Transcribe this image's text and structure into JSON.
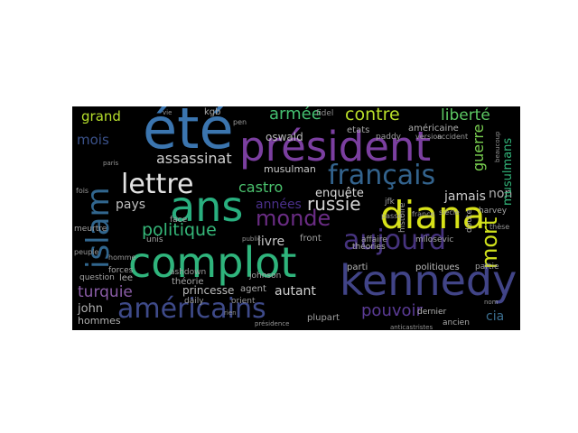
{
  "wordcloud": {
    "background": "#000000",
    "words": [
      {
        "text": "complot",
        "color": "#2fb47c"
      },
      {
        "text": "été",
        "color": "#3b75af"
      },
      {
        "text": "président",
        "color": "#7b3fa0"
      },
      {
        "text": "kennedy",
        "color": "#414487"
      },
      {
        "text": "diana",
        "color": "#d8e219"
      },
      {
        "text": "ans",
        "color": "#29af7f"
      },
      {
        "text": "américains",
        "color": "#3e4a89"
      },
      {
        "text": "islam",
        "color": "#31668e"
      },
      {
        "text": "aujourd",
        "color": "#46337e"
      },
      {
        "text": "français",
        "color": "#33638d"
      },
      {
        "text": "lettre",
        "color": "#e2e2e2"
      },
      {
        "text": "monde",
        "color": "#6a2c84"
      },
      {
        "text": "contre",
        "color": "#b8de29"
      },
      {
        "text": "liberté",
        "color": "#5cc863"
      },
      {
        "text": "armée",
        "color": "#44bf70"
      },
      {
        "text": "mort",
        "color": "#d0e11c"
      },
      {
        "text": "politique",
        "color": "#35b779"
      },
      {
        "text": "russie",
        "color": "#d5d5d5"
      },
      {
        "text": "turquie",
        "color": "#8a5ca6"
      },
      {
        "text": "pouvoir",
        "color": "#5b3b95"
      },
      {
        "text": "guerre",
        "color": "#7ad151"
      },
      {
        "text": "assassinat",
        "color": "#cfcfcf"
      },
      {
        "text": "grand",
        "color": "#b5de2b"
      },
      {
        "text": "mois",
        "color": "#3b528b"
      },
      {
        "text": "castro",
        "color": "#4ac16d"
      },
      {
        "text": "pays",
        "color": "#c0c0c0"
      },
      {
        "text": "enquête",
        "color": "#d9d9d9"
      },
      {
        "text": "autant",
        "color": "#d0d0d0"
      },
      {
        "text": "années",
        "color": "#4a2f8a"
      },
      {
        "text": "livre",
        "color": "#c8c8c8"
      },
      {
        "text": "jamais",
        "color": "#cccccc"
      },
      {
        "text": "non",
        "color": "#b0b0b0"
      },
      {
        "text": "musulmans",
        "color": "#32b67a"
      },
      {
        "text": "musulman",
        "color": "#c8c8c8"
      },
      {
        "text": "oswald",
        "color": "#b8b8b8"
      },
      {
        "text": "john",
        "color": "#b0b0b0"
      },
      {
        "text": "cia",
        "color": "#3b6e8f"
      },
      {
        "text": "kgb",
        "color": "#a9a9a9"
      },
      {
        "text": "fidel",
        "color": "#8f8f8f"
      },
      {
        "text": "etats",
        "color": "#a5a5a5"
      },
      {
        "text": "américaine",
        "color": "#b0b0b0"
      },
      {
        "text": "paddy",
        "color": "#9c9c9c"
      },
      {
        "text": "version",
        "color": "#9a9a9a"
      },
      {
        "text": "accident",
        "color": "#9a9a9a"
      },
      {
        "text": "théorie",
        "color": "#a6a6a6"
      },
      {
        "text": "princesse",
        "color": "#bdbdbd"
      },
      {
        "text": "agent",
        "color": "#adadad"
      },
      {
        "text": "daily",
        "color": "#9a9a9a"
      },
      {
        "text": "orient",
        "color": "#999999"
      },
      {
        "text": "plupart",
        "color": "#a0a0a0"
      },
      {
        "text": "front",
        "color": "#a0a0a0"
      },
      {
        "text": "parti",
        "color": "#b5b5b5"
      },
      {
        "text": "politiques",
        "color": "#b8b8b8"
      },
      {
        "text": "partie",
        "color": "#a6a6a6"
      },
      {
        "text": "dernier",
        "color": "#b5b5b5"
      },
      {
        "text": "ancien",
        "color": "#a8a8a8"
      },
      {
        "text": "hommes",
        "color": "#b0b0b0"
      },
      {
        "text": "question",
        "color": "#a5a5a5"
      },
      {
        "text": "forces",
        "color": "#a8a8a8"
      },
      {
        "text": "ashdown",
        "color": "#9e9e9e"
      },
      {
        "text": "johnson",
        "color": "#a5a5a5"
      },
      {
        "text": "lee",
        "color": "#b0b0b0"
      },
      {
        "text": "unis",
        "color": "#a5a5a5"
      },
      {
        "text": "face",
        "color": "#a0a0a0"
      },
      {
        "text": "théories",
        "color": "#b0b0b0"
      },
      {
        "text": "affaire",
        "color": "#a5a5a5"
      },
      {
        "text": "milosevic",
        "color": "#a3a3a3"
      },
      {
        "text": "harvey",
        "color": "#a5a5a5"
      },
      {
        "text": "histoire",
        "color": "#a0a0a0"
      },
      {
        "text": "jfk",
        "color": "#9e9e9e"
      },
      {
        "text": "fois",
        "color": "#9a9a9a"
      },
      {
        "text": "meurtre",
        "color": "#a0a0a0"
      },
      {
        "text": "peuple",
        "color": "#9a9a9a"
      },
      {
        "text": "siècle",
        "color": "#9a9a9a"
      },
      {
        "text": "doute",
        "color": "#a0a0a0"
      },
      {
        "text": "passé",
        "color": "#9a9a9a"
      },
      {
        "text": "france",
        "color": "#9a9a9a"
      },
      {
        "text": "pen",
        "color": "#9a9a9a"
      },
      {
        "text": "homme",
        "color": "#9a9a9a"
      },
      {
        "text": "public",
        "color": "#949494"
      },
      {
        "text": "thèse",
        "color": "#949494"
      },
      {
        "text": "présidence",
        "color": "#949494"
      },
      {
        "text": "anticastristes",
        "color": "#949494"
      },
      {
        "text": "beaucoup",
        "color": "#949494"
      },
      {
        "text": "rien",
        "color": "#949494"
      },
      {
        "text": "paris",
        "color": "#949494"
      },
      {
        "text": "nom",
        "color": "#949494"
      },
      {
        "text": "vie",
        "color": "#949494"
      }
    ]
  }
}
